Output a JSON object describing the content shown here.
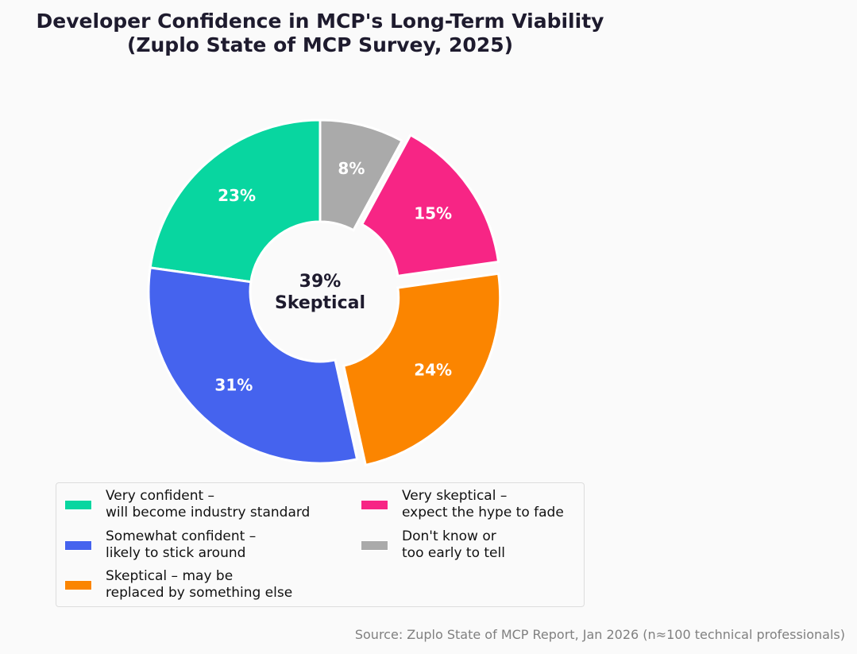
{
  "chart_data": {
    "type": "pie",
    "variant": "donut",
    "title_line1": "Developer Confidence in MCP's Long-Term Viability",
    "title_line2": "(Zuplo State of MCP Survey, 2025)",
    "center_value": "39%",
    "center_label": "Skeptical",
    "start_angle_deg": 90,
    "direction": "counterclockwise",
    "legend_placement": "bottom",
    "slices": [
      {
        "name": "Very confident –\nwill become industry standard",
        "value": 23,
        "label": "23%",
        "color": "#08d6a0",
        "exploded": false
      },
      {
        "name": "Somewhat confident –\nlikely to stick around",
        "value": 31,
        "label": "31%",
        "color": "#4563ee",
        "exploded": false
      },
      {
        "name": "Skeptical – may be\nreplaced by something else",
        "value": 24,
        "label": "24%",
        "color": "#fb8500",
        "exploded": true
      },
      {
        "name": "Very skeptical –\nexpect the hype to fade",
        "value": 15,
        "label": "15%",
        "color": "#f72585",
        "exploded": true
      },
      {
        "name": "Don't know or\ntoo early to tell",
        "value": 8,
        "label": "8%",
        "color": "#aaaaaa",
        "exploded": false
      }
    ],
    "source": "Source: Zuplo State of MCP Report, Jan 2026 (n≈100 technical professionals)"
  }
}
